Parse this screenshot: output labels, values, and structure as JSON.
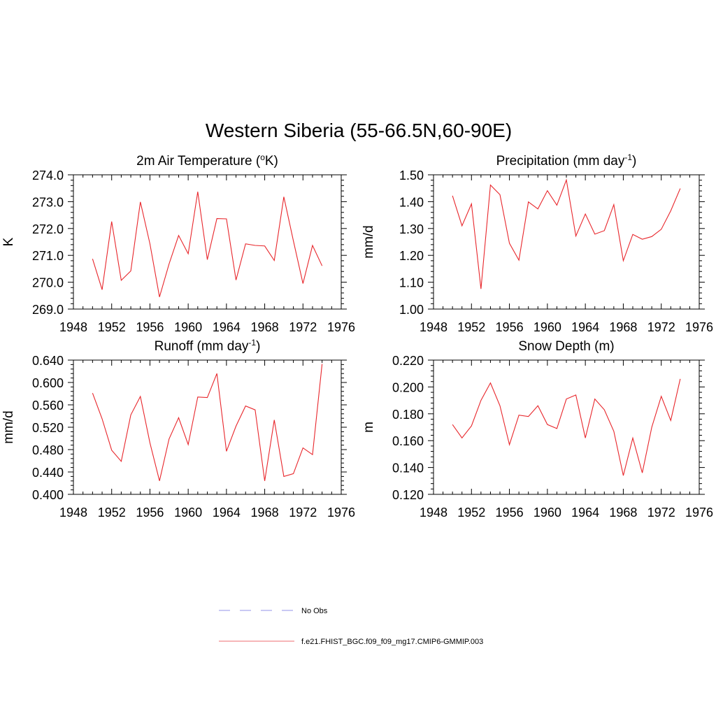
{
  "figure": {
    "title": "Western Siberia (55-66.5N,60-90E)",
    "line_color": "#e8262b",
    "obs_color": "#a9a9ee"
  },
  "legend": {
    "items": [
      {
        "label": "No Obs",
        "style": "dashed",
        "color": "#a9a9ee"
      },
      {
        "label": "f.e21.FHIST_BGC.f09_f09_mg17.CMIP6-GMMIP.003",
        "style": "solid",
        "color": "#f08a8d"
      }
    ]
  },
  "chart_data": [
    {
      "type": "line",
      "title": "2m Air Temperature (",
      "title_sup": "o",
      "title_end": "K)",
      "ylabel": "K",
      "xlim": [
        1948,
        1976
      ],
      "ylim": [
        269.0,
        274.0
      ],
      "xticks": [
        1948,
        1952,
        1956,
        1960,
        1964,
        1968,
        1972,
        1976
      ],
      "xtick_labels": [
        "1948",
        "1952",
        "1956",
        "1960",
        "1964",
        "1968",
        "1972",
        "1976"
      ],
      "yticks": [
        269.0,
        270.0,
        271.0,
        272.0,
        273.0,
        274.0
      ],
      "ytick_labels": [
        "269.0",
        "270.0",
        "271.0",
        "272.0",
        "273.0",
        "274.0"
      ],
      "series": [
        {
          "x": [
            1950,
            1951,
            1952,
            1953,
            1954,
            1955,
            1956,
            1957,
            1958,
            1959,
            1960,
            1961,
            1962,
            1963,
            1964,
            1965,
            1966,
            1967,
            1968,
            1969,
            1970,
            1971,
            1972,
            1973,
            1974
          ],
          "values": [
            270.87,
            269.72,
            272.26,
            270.07,
            270.42,
            272.99,
            271.43,
            269.45,
            270.68,
            271.74,
            271.06,
            273.37,
            270.84,
            272.37,
            272.36,
            270.08,
            271.43,
            271.37,
            271.35,
            270.81,
            273.18,
            271.54,
            269.95,
            271.37,
            270.61
          ]
        }
      ]
    },
    {
      "type": "line",
      "title": "Precipitation (mm day",
      "title_sup": "-1",
      "title_end": ")",
      "ylabel": "mm/d",
      "xlim": [
        1948,
        1976
      ],
      "ylim": [
        1.0,
        1.5
      ],
      "xticks": [
        1948,
        1952,
        1956,
        1960,
        1964,
        1968,
        1972,
        1976
      ],
      "xtick_labels": [
        "1948",
        "1952",
        "1956",
        "1960",
        "1964",
        "1968",
        "1972",
        "1976"
      ],
      "yticks": [
        1.0,
        1.1,
        1.2,
        1.3,
        1.4,
        1.5
      ],
      "ytick_labels": [
        "1.00",
        "1.10",
        "1.20",
        "1.30",
        "1.40",
        "1.50"
      ],
      "series": [
        {
          "x": [
            1950,
            1951,
            1952,
            1953,
            1954,
            1955,
            1956,
            1957,
            1958,
            1959,
            1960,
            1961,
            1962,
            1963,
            1964,
            1965,
            1966,
            1967,
            1968,
            1969,
            1970,
            1971,
            1972,
            1973,
            1974
          ],
          "values": [
            1.422,
            1.31,
            1.392,
            1.075,
            1.462,
            1.426,
            1.245,
            1.182,
            1.399,
            1.373,
            1.441,
            1.387,
            1.481,
            1.272,
            1.354,
            1.279,
            1.292,
            1.389,
            1.18,
            1.278,
            1.26,
            1.27,
            1.297,
            1.366,
            1.449
          ]
        }
      ]
    },
    {
      "type": "line",
      "title": "Runoff (mm day",
      "title_sup": "-1",
      "title_end": ")",
      "ylabel": "mm/d",
      "xlim": [
        1948,
        1976
      ],
      "ylim": [
        0.4,
        0.64
      ],
      "xticks": [
        1948,
        1952,
        1956,
        1960,
        1964,
        1968,
        1972,
        1976
      ],
      "xtick_labels": [
        "1948",
        "1952",
        "1956",
        "1960",
        "1964",
        "1968",
        "1972",
        "1976"
      ],
      "yticks": [
        0.4,
        0.44,
        0.48,
        0.52,
        0.56,
        0.6,
        0.64
      ],
      "ytick_labels": [
        "0.400",
        "0.440",
        "0.480",
        "0.520",
        "0.560",
        "0.600",
        "0.640"
      ],
      "series": [
        {
          "x": [
            1950,
            1951,
            1952,
            1953,
            1954,
            1955,
            1956,
            1957,
            1958,
            1959,
            1960,
            1961,
            1962,
            1963,
            1964,
            1965,
            1966,
            1967,
            1968,
            1969,
            1970,
            1971,
            1972,
            1973,
            1974
          ],
          "values": [
            0.581,
            0.535,
            0.479,
            0.459,
            0.542,
            0.575,
            0.492,
            0.424,
            0.499,
            0.537,
            0.489,
            0.574,
            0.573,
            0.616,
            0.477,
            0.522,
            0.558,
            0.551,
            0.424,
            0.533,
            0.432,
            0.437,
            0.483,
            0.471,
            0.633
          ]
        }
      ]
    },
    {
      "type": "line",
      "title": "Snow Depth (m)",
      "title_sup": "",
      "title_end": "",
      "ylabel": "m",
      "xlim": [
        1948,
        1976
      ],
      "ylim": [
        0.12,
        0.22
      ],
      "xticks": [
        1948,
        1952,
        1956,
        1960,
        1964,
        1968,
        1972,
        1976
      ],
      "xtick_labels": [
        "1948",
        "1952",
        "1956",
        "1960",
        "1964",
        "1968",
        "1972",
        "1976"
      ],
      "yticks": [
        0.12,
        0.14,
        0.16,
        0.18,
        0.2,
        0.22
      ],
      "ytick_labels": [
        "0.120",
        "0.140",
        "0.160",
        "0.180",
        "0.200",
        "0.220"
      ],
      "series": [
        {
          "x": [
            1950,
            1951,
            1952,
            1953,
            1954,
            1955,
            1956,
            1957,
            1958,
            1959,
            1960,
            1961,
            1962,
            1963,
            1964,
            1965,
            1966,
            1967,
            1968,
            1969,
            1970,
            1971,
            1972,
            1973,
            1974
          ],
          "values": [
            0.172,
            0.162,
            0.171,
            0.19,
            0.203,
            0.186,
            0.157,
            0.179,
            0.178,
            0.186,
            0.172,
            0.169,
            0.191,
            0.194,
            0.162,
            0.191,
            0.183,
            0.167,
            0.134,
            0.162,
            0.136,
            0.17,
            0.193,
            0.175,
            0.206
          ]
        }
      ]
    }
  ]
}
